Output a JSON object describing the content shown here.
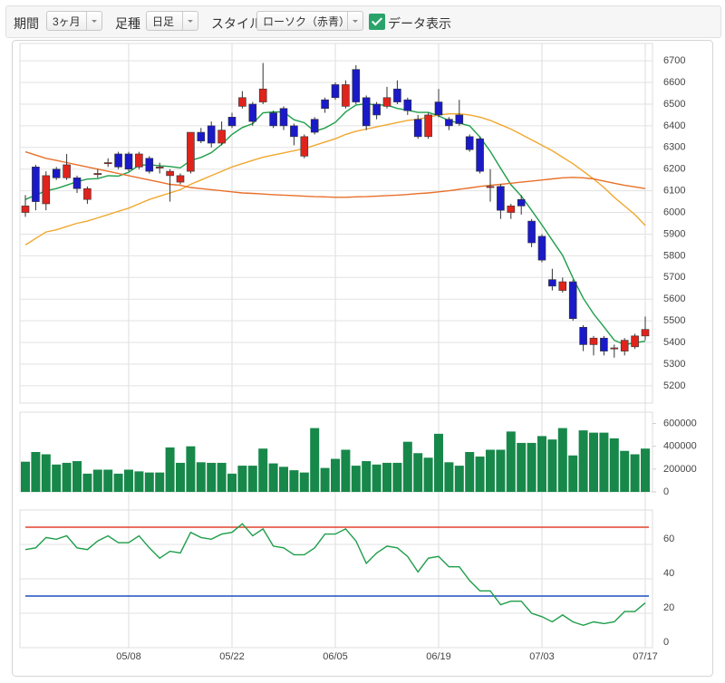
{
  "toolbar": {
    "period_label": "期間",
    "period_value": "3ヶ月",
    "candle_label": "足種",
    "candle_value": "日足",
    "style_label": "スタイル",
    "style_value": "ローソク（赤青）",
    "data_display": "データ表示",
    "data_display_checked": true
  },
  "chart_data": [
    {
      "type": "candlestick",
      "up_color": "#e0231c",
      "down_color": "#1a1ac8",
      "grid": true,
      "categories": [
        null,
        null,
        null,
        null,
        null,
        null,
        null,
        null,
        null,
        null,
        "05/08",
        null,
        null,
        null,
        null,
        null,
        null,
        null,
        null,
        null,
        "05/22",
        null,
        null,
        null,
        null,
        null,
        null,
        null,
        null,
        null,
        "06/05",
        null,
        null,
        null,
        null,
        null,
        null,
        null,
        null,
        null,
        "06/19",
        null,
        null,
        null,
        null,
        null,
        null,
        null,
        null,
        null,
        "07/03",
        null,
        null,
        null,
        null,
        null,
        null,
        null,
        null,
        null,
        "07/17"
      ],
      "open": [
        6000,
        6210,
        6040,
        6200,
        6160,
        6160,
        6060,
        6175,
        6225,
        6270,
        6270,
        6210,
        6250,
        6205,
        6170,
        6140,
        6190,
        6370,
        6400,
        6320,
        6440,
        6490,
        6500,
        6510,
        6460,
        6480,
        6400,
        6260,
        6430,
        6520,
        6590,
        6490,
        6660,
        6530,
        6500,
        6490,
        6570,
        6520,
        6430,
        6350,
        6510,
        6430,
        6450,
        6350,
        6340,
        6115,
        6120,
        6000,
        6060,
        5960,
        5890,
        5690,
        5640,
        5680,
        5470,
        5390,
        5420,
        5370,
        5360,
        5380,
        5430
      ],
      "high": [
        6080,
        6220,
        6190,
        6210,
        6270,
        6170,
        6120,
        6200,
        6250,
        6280,
        6280,
        6280,
        6260,
        6230,
        6200,
        6180,
        6370,
        6390,
        6420,
        6420,
        6460,
        6560,
        6510,
        6690,
        6470,
        6490,
        6410,
        6360,
        6440,
        6530,
        6600,
        6610,
        6680,
        6540,
        6510,
        6580,
        6610,
        6530,
        6450,
        6460,
        6570,
        6440,
        6520,
        6360,
        6350,
        6200,
        6130,
        6040,
        6080,
        5970,
        5900,
        5740,
        5700,
        5690,
        5480,
        5430,
        5430,
        5390,
        5420,
        5440,
        5520
      ],
      "low": [
        5980,
        6010,
        6010,
        6150,
        6150,
        6090,
        6040,
        6160,
        6210,
        6200,
        6190,
        6200,
        6180,
        6180,
        6050,
        6130,
        6180,
        6320,
        6300,
        6310,
        6390,
        6480,
        6400,
        6500,
        6390,
        6380,
        6310,
        6250,
        6360,
        6460,
        6520,
        6480,
        6500,
        6380,
        6430,
        6480,
        6500,
        6450,
        6340,
        6340,
        6440,
        6380,
        6400,
        6280,
        6180,
        6050,
        5970,
        5970,
        5990,
        5840,
        5770,
        5640,
        5630,
        5500,
        5360,
        5340,
        5340,
        5330,
        5340,
        5370,
        5410
      ],
      "close": [
        6030,
        6050,
        6170,
        6160,
        6220,
        6110,
        6110,
        6180,
        6230,
        6210,
        6200,
        6270,
        6190,
        6210,
        6190,
        6170,
        6370,
        6330,
        6320,
        6380,
        6400,
        6530,
        6420,
        6570,
        6400,
        6400,
        6350,
        6350,
        6370,
        6480,
        6530,
        6590,
        6510,
        6400,
        6450,
        6530,
        6510,
        6470,
        6350,
        6450,
        6450,
        6400,
        6410,
        6290,
        6190,
        6120,
        6010,
        6030,
        6030,
        5860,
        5780,
        5660,
        5680,
        5510,
        5390,
        5420,
        5360,
        5375,
        5410,
        5430,
        5460
      ],
      "series": [
        {
          "color": "#1e9e4a",
          "values": [
            6060,
            6080,
            6100,
            6110,
            6126,
            6142,
            6154,
            6156,
            6170,
            6168,
            6186,
            6218,
            6220,
            6216,
            6212,
            6206,
            6240,
            6254,
            6276,
            6314,
            6360,
            6392,
            6410,
            6460,
            6464,
            6464,
            6428,
            6414,
            6374,
            6390,
            6416,
            6464,
            6496,
            6502,
            6496,
            6496,
            6480,
            6472,
            6462,
            6462,
            6446,
            6424,
            6412,
            6400,
            6348,
            6282,
            6204,
            6128,
            6076,
            6010,
            5942,
            5872,
            5802,
            5698,
            5604,
            5532,
            5472,
            5410,
            5390,
            5398,
            5406
          ]
        },
        {
          "color": "#f0a830",
          "values": [
            5850,
            5880,
            5910,
            5920,
            5935,
            5950,
            5960,
            5975,
            5990,
            6005,
            6020,
            6040,
            6060,
            6075,
            6090,
            6105,
            6130,
            6150,
            6170,
            6190,
            6210,
            6225,
            6240,
            6255,
            6265,
            6275,
            6285,
            6295,
            6310,
            6325,
            6340,
            6360,
            6375,
            6385,
            6395,
            6405,
            6415,
            6425,
            6430,
            6440,
            6450,
            6455,
            6455,
            6450,
            6440,
            6425,
            6405,
            6385,
            6360,
            6335,
            6310,
            6285,
            6255,
            6225,
            6190,
            6155,
            6115,
            6070,
            6030,
            5990,
            5940
          ]
        },
        {
          "color": "#e8702a",
          "values": [
            6280,
            6265,
            6250,
            6240,
            6230,
            6220,
            6210,
            6200,
            6190,
            6180,
            6170,
            6160,
            6150,
            6140,
            6130,
            6125,
            6115,
            6110,
            6105,
            6100,
            6095,
            6090,
            6088,
            6085,
            6082,
            6080,
            6078,
            6075,
            6073,
            6072,
            6070,
            6070,
            6072,
            6073,
            6075,
            6078,
            6080,
            6083,
            6087,
            6090,
            6095,
            6100,
            6107,
            6113,
            6120,
            6125,
            6130,
            6135,
            6140,
            6145,
            6150,
            6155,
            6160,
            6162,
            6160,
            6155,
            6145,
            6135,
            6125,
            6118,
            6110
          ]
        }
      ],
      "ylim": [
        5120,
        6780
      ],
      "yticks": [
        5200,
        5300,
        5400,
        5500,
        5600,
        5700,
        5800,
        5900,
        6000,
        6100,
        6200,
        6300,
        6400,
        6500,
        6600,
        6700
      ]
    },
    {
      "type": "bar",
      "color": "#17884a",
      "values": [
        265000,
        350000,
        330000,
        240000,
        255000,
        270000,
        160000,
        195000,
        195000,
        160000,
        195000,
        180000,
        170000,
        170000,
        390000,
        255000,
        400000,
        260000,
        255000,
        255000,
        160000,
        230000,
        230000,
        380000,
        250000,
        220000,
        190000,
        170000,
        560000,
        210000,
        290000,
        370000,
        230000,
        270000,
        240000,
        255000,
        255000,
        440000,
        340000,
        300000,
        510000,
        260000,
        230000,
        350000,
        310000,
        370000,
        370000,
        530000,
        430000,
        430000,
        490000,
        460000,
        560000,
        320000,
        540000,
        520000,
        520000,
        470000,
        360000,
        330000,
        380000
      ],
      "ylim": [
        0,
        700000
      ],
      "yticks": [
        0,
        200000,
        400000,
        600000
      ]
    },
    {
      "type": "line",
      "grid": true,
      "series": [
        {
          "color": "#1e9e4a",
          "values": [
            57,
            58,
            64,
            63,
            65,
            58,
            57,
            62,
            65,
            61,
            61,
            65,
            58,
            52,
            56,
            55,
            67,
            64,
            63,
            66,
            67,
            72,
            65,
            69,
            59,
            58,
            54,
            54,
            58,
            66,
            66,
            69,
            62,
            49,
            55,
            59,
            58,
            53,
            44,
            52,
            53,
            47,
            47,
            39,
            33,
            33,
            25,
            27,
            27,
            20,
            18,
            15,
            19,
            15,
            13,
            15,
            14,
            15,
            21,
            21,
            26
          ]
        }
      ],
      "hlines": [
        {
          "value": 70,
          "color": "#e0442c"
        },
        {
          "value": 30,
          "color": "#1f4fbf"
        }
      ],
      "ylim": [
        0,
        80
      ],
      "yticks": [
        0,
        20,
        40,
        60
      ]
    }
  ]
}
